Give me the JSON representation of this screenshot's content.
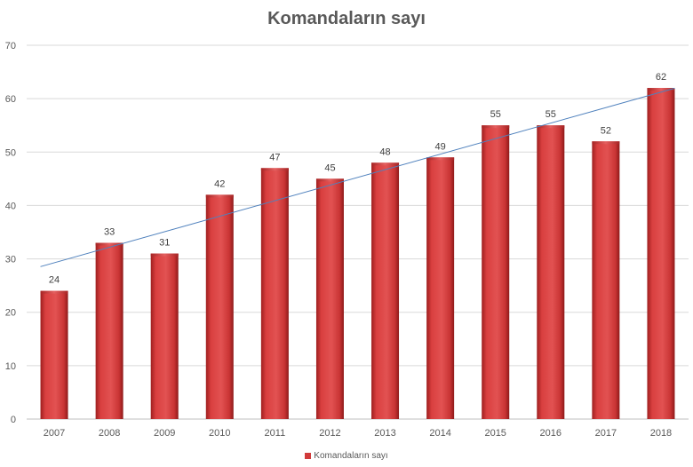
{
  "chart_data": {
    "type": "bar",
    "title": "Komandaların sayı",
    "categories": [
      "2007",
      "2008",
      "2009",
      "2010",
      "2011",
      "2012",
      "2013",
      "2014",
      "2015",
      "2016",
      "2017",
      "2018"
    ],
    "series": [
      {
        "name": "Komandaların sayı",
        "values": [
          24,
          33,
          31,
          42,
          47,
          45,
          48,
          49,
          55,
          55,
          52,
          62
        ]
      }
    ],
    "trendline": {
      "type": "linear",
      "color": "#4f81bd"
    },
    "ylim": [
      0,
      70
    ],
    "yticks": [
      0,
      10,
      20,
      30,
      40,
      50,
      60,
      70
    ],
    "grid": true,
    "data_labels": true,
    "legend_position": "bottom",
    "bar_color": "#d13b3b"
  }
}
